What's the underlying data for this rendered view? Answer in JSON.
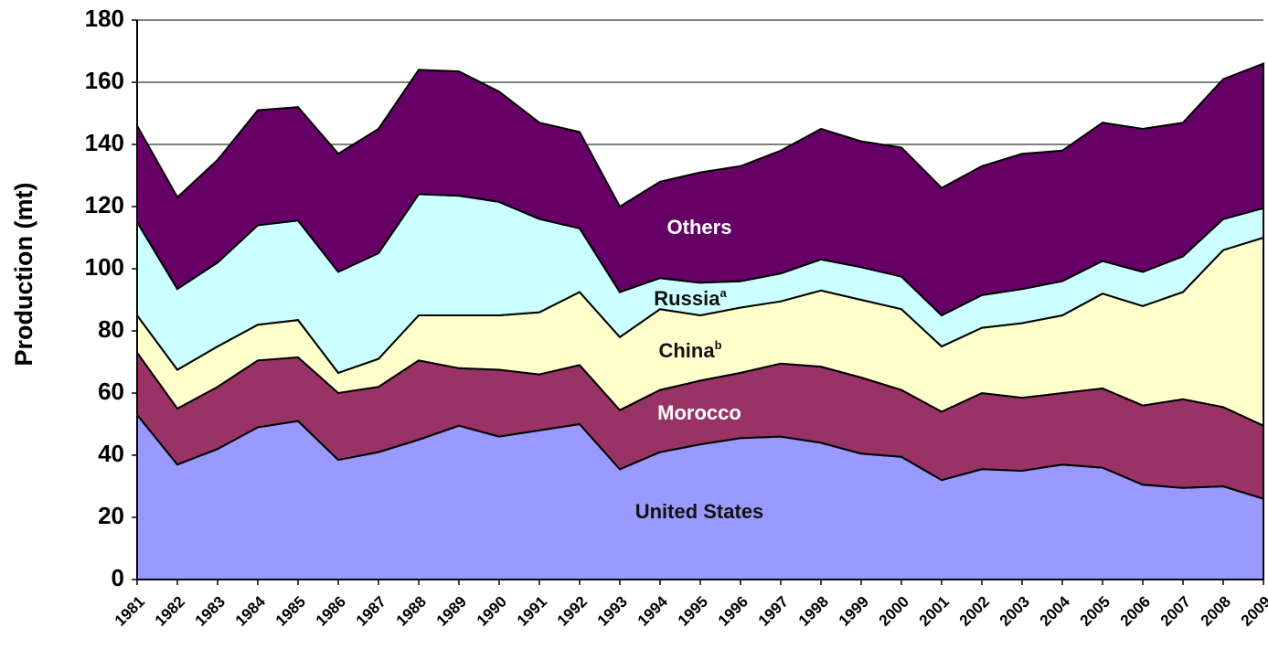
{
  "chart_data": {
    "type": "stacked_area",
    "y_label": "Production (mt)",
    "categories": [
      "1981",
      "1982",
      "1983",
      "1984",
      "1985",
      "1986",
      "1987",
      "1988",
      "1989",
      "1990",
      "1991",
      "1992",
      "1993",
      "1994",
      "1995",
      "1996",
      "1997",
      "1998",
      "1999",
      "2000",
      "2001",
      "2002",
      "2003",
      "2004",
      "2005",
      "2006",
      "2007",
      "2008",
      "2009"
    ],
    "series": [
      {
        "name": "United States",
        "color": "#9999ff",
        "values": [
          53,
          37,
          42,
          49,
          51,
          38.5,
          41,
          45,
          49.5,
          46,
          48,
          50,
          35.5,
          41,
          43.5,
          45.5,
          46,
          44,
          40.5,
          39.5,
          32,
          35.5,
          35,
          37,
          36,
          30.5,
          29.5,
          30,
          26
        ]
      },
      {
        "name": "Morocco",
        "color": "#993366",
        "values": [
          20,
          18,
          20,
          21.5,
          20.5,
          21.5,
          21,
          25.5,
          18.5,
          21.5,
          18,
          19,
          19,
          20,
          20.5,
          21,
          23.5,
          24.5,
          24.5,
          21.5,
          22,
          24.5,
          23.5,
          23,
          25.5,
          25.5,
          28.5,
          25.5,
          23.5
        ]
      },
      {
        "name": "China",
        "superscript": "b",
        "color": "#ffffcc",
        "values": [
          12,
          12.5,
          13,
          11.5,
          12,
          6.5,
          9,
          14.5,
          17,
          17.5,
          20,
          23.5,
          23.5,
          26,
          21,
          21,
          20,
          24.5,
          25,
          26,
          21,
          21,
          24,
          25,
          30.5,
          32,
          34.5,
          50.5,
          60.5
        ]
      },
      {
        "name": "Russia",
        "superscript": "a",
        "color": "#ccffff",
        "values": [
          30,
          26,
          27,
          32,
          32,
          32.5,
          34,
          39,
          38.5,
          36.5,
          30,
          20.5,
          14.5,
          10,
          10.5,
          8.5,
          9,
          10,
          10.5,
          10.5,
          10,
          10.5,
          11,
          11,
          10.5,
          11,
          11.5,
          10,
          9.5
        ]
      },
      {
        "name": "Others",
        "color": "#660066",
        "values": [
          31,
          29.5,
          33,
          37,
          36.5,
          38,
          40,
          40,
          40,
          35.5,
          31,
          31,
          27.5,
          31,
          35.5,
          37,
          39.5,
          42,
          40.5,
          41.5,
          41,
          41.5,
          43.5,
          42,
          44.5,
          46,
          43,
          45,
          46.5
        ]
      }
    ],
    "ylim": [
      0,
      180
    ],
    "yticks": [
      0,
      20,
      40,
      60,
      80,
      100,
      120,
      140,
      160,
      180
    ],
    "grid": true
  }
}
